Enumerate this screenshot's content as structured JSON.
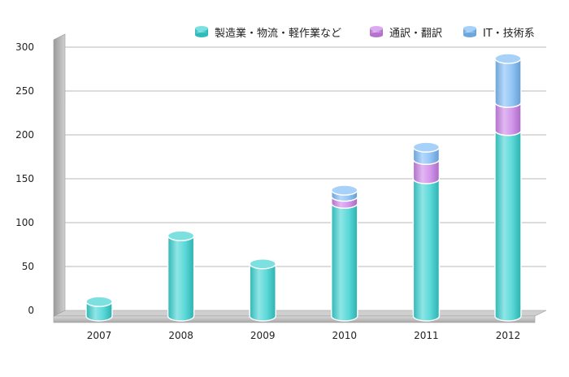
{
  "chart_data": {
    "type": "bar",
    "stacked": true,
    "style": "3d-cylinder",
    "categories": [
      "2007",
      "2008",
      "2009",
      "2010",
      "2011",
      "2012"
    ],
    "series": [
      {
        "name": "製造業・物流・軽作業など",
        "color": "#35d0cf",
        "values": [
          10,
          85,
          53,
          122,
          150,
          205
        ]
      },
      {
        "name": "通訳・翻訳",
        "color": "#c87de6",
        "values": [
          0,
          0,
          0,
          8,
          22,
          32
        ]
      },
      {
        "name": "IT・技術系",
        "color": "#78b8f5",
        "values": [
          0,
          0,
          0,
          7,
          14,
          50
        ]
      }
    ],
    "y_ticks": [
      "0",
      "50",
      "100",
      "150",
      "200",
      "250",
      "300"
    ],
    "ylim": [
      0,
      300
    ],
    "grid": true,
    "legend": {
      "position": "top-right"
    }
  }
}
